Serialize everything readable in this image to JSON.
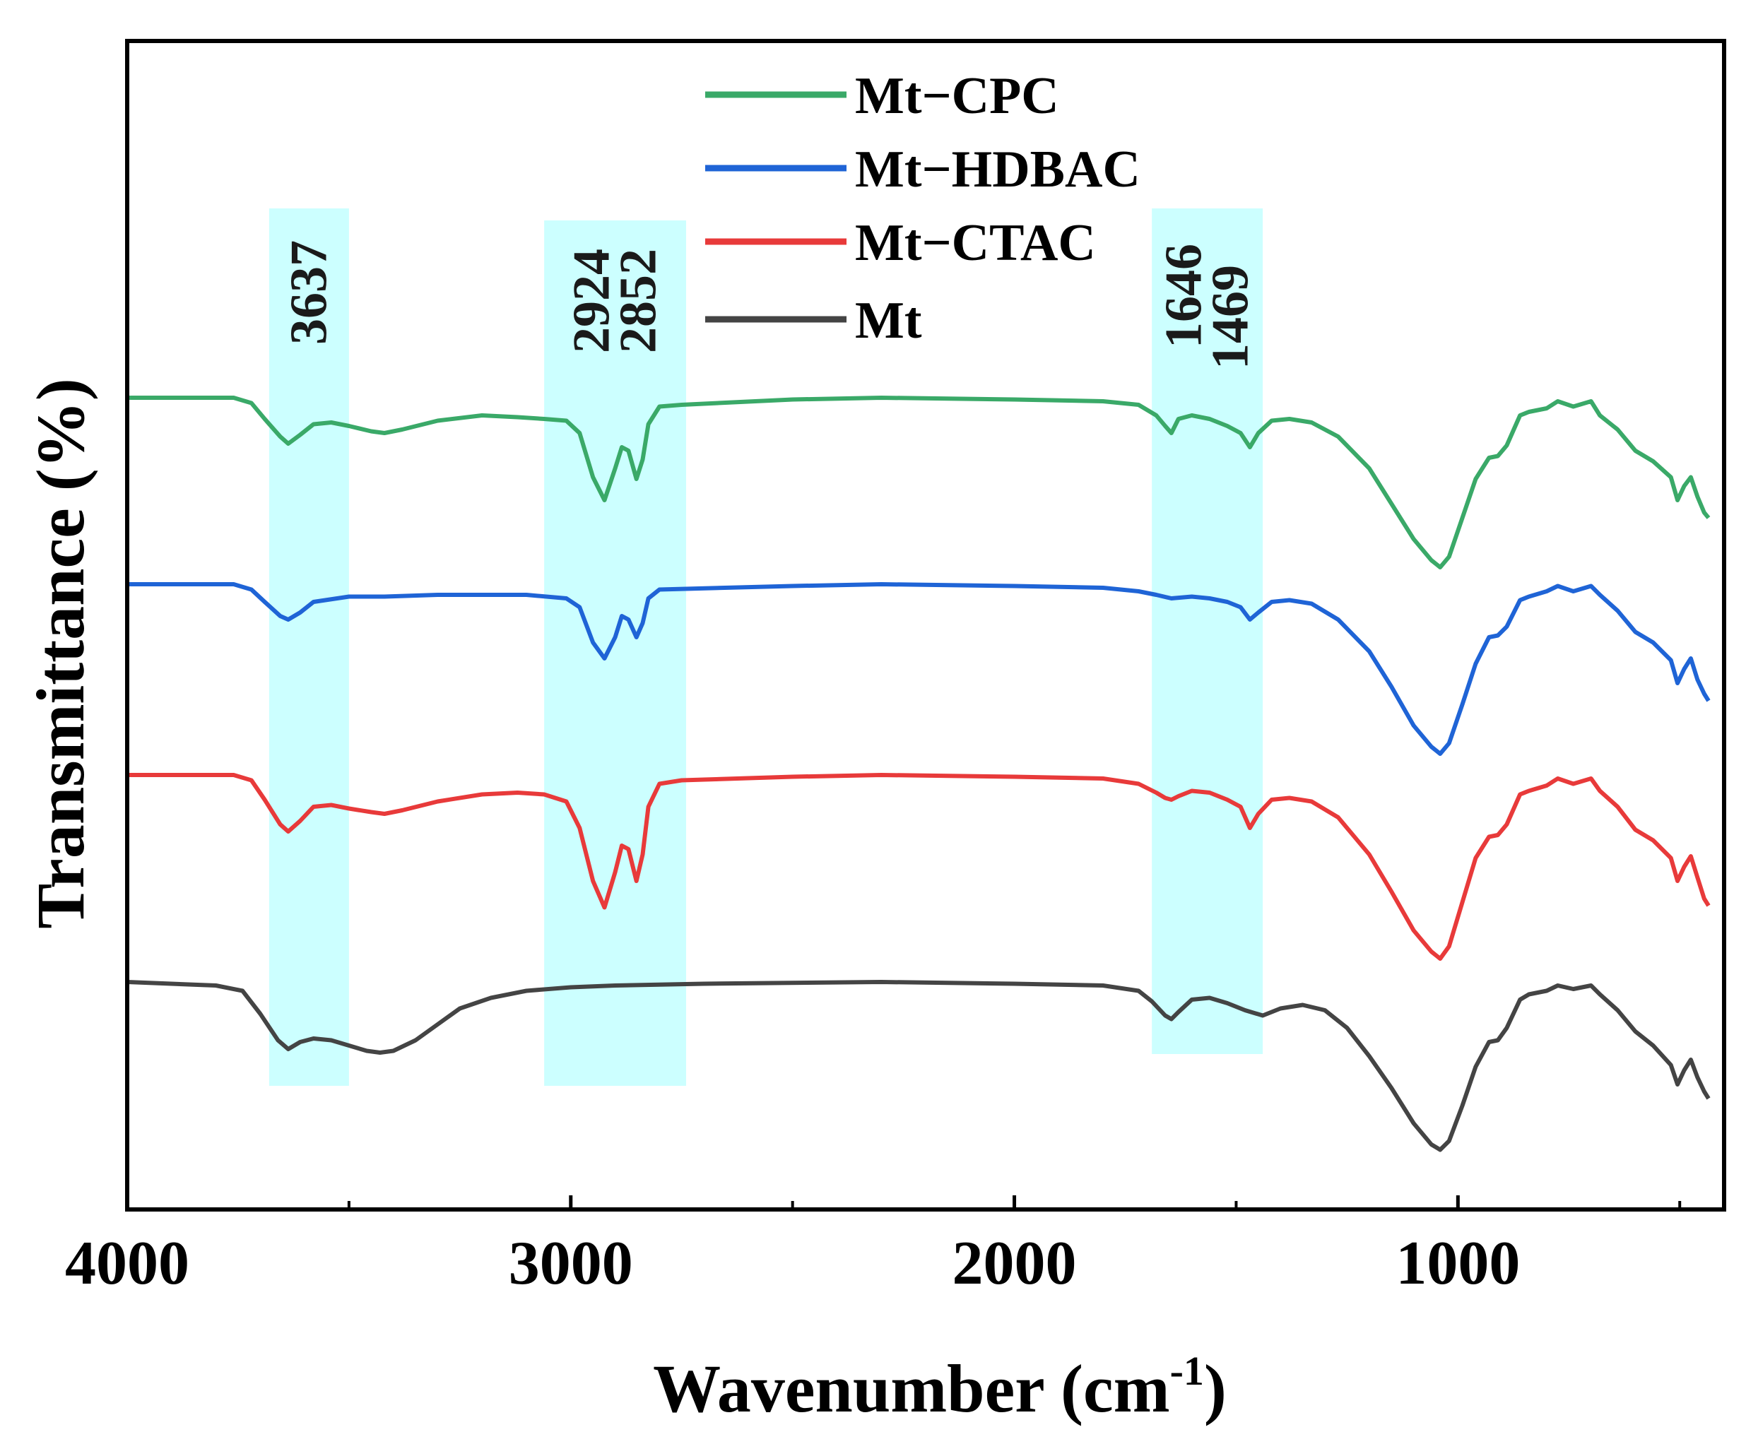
{
  "chart_data": {
    "type": "line",
    "xlabel": "Wavenumber (cm",
    "xlabel_sup": "-1",
    "xlabel_close": ")",
    "ylabel": "Transmittance (%)",
    "xlim": [
      4000,
      400
    ],
    "x_reversed": true,
    "y_ticks_shown": false,
    "x_ticks": [
      4000,
      3000,
      2000,
      1000
    ],
    "x_tick_labels": [
      "4000",
      "3000",
      "2000",
      "1000"
    ],
    "x_minor_ticks": [
      3500,
      2500,
      1500,
      500
    ],
    "legend": {
      "position": "top-center"
    },
    "highlight_bands": [
      {
        "from": 3680,
        "to": 3500,
        "labels": [
          "3637"
        ],
        "color": "#ccffff",
        "extent": "full"
      },
      {
        "from": 3060,
        "to": 2740,
        "labels": [
          "2924",
          "2852"
        ],
        "color": "#ccffff",
        "extent": "full"
      },
      {
        "from": 1690,
        "to": 1440,
        "labels": [
          "1646",
          "1469"
        ],
        "color": "#ccffff",
        "extent": "short"
      }
    ],
    "series": [
      {
        "name": "Mt−CPC",
        "color": "#3aa968",
        "offset": 3,
        "points": [
          [
            4000,
            0
          ],
          [
            3760,
            0
          ],
          [
            3720,
            -0.03
          ],
          [
            3690,
            -0.12
          ],
          [
            3655,
            -0.22
          ],
          [
            3637,
            -0.26
          ],
          [
            3610,
            -0.21
          ],
          [
            3580,
            -0.15
          ],
          [
            3540,
            -0.14
          ],
          [
            3500,
            -0.16
          ],
          [
            3450,
            -0.19
          ],
          [
            3420,
            -0.2
          ],
          [
            3380,
            -0.18
          ],
          [
            3300,
            -0.13
          ],
          [
            3200,
            -0.1
          ],
          [
            3120,
            -0.11
          ],
          [
            3060,
            -0.12
          ],
          [
            3010,
            -0.13
          ],
          [
            2980,
            -0.2
          ],
          [
            2950,
            -0.45
          ],
          [
            2924,
            -0.58
          ],
          [
            2900,
            -0.4
          ],
          [
            2885,
            -0.28
          ],
          [
            2870,
            -0.3
          ],
          [
            2852,
            -0.46
          ],
          [
            2838,
            -0.35
          ],
          [
            2825,
            -0.15
          ],
          [
            2800,
            -0.05
          ],
          [
            2750,
            -0.04
          ],
          [
            2500,
            -0.01
          ],
          [
            2300,
            0
          ],
          [
            2000,
            -0.01
          ],
          [
            1800,
            -0.02
          ],
          [
            1720,
            -0.04
          ],
          [
            1680,
            -0.1
          ],
          [
            1660,
            -0.16
          ],
          [
            1646,
            -0.2
          ],
          [
            1630,
            -0.12
          ],
          [
            1600,
            -0.1
          ],
          [
            1560,
            -0.12
          ],
          [
            1520,
            -0.16
          ],
          [
            1490,
            -0.2
          ],
          [
            1469,
            -0.28
          ],
          [
            1450,
            -0.2
          ],
          [
            1420,
            -0.13
          ],
          [
            1380,
            -0.12
          ],
          [
            1330,
            -0.14
          ],
          [
            1270,
            -0.22
          ],
          [
            1200,
            -0.4
          ],
          [
            1150,
            -0.6
          ],
          [
            1100,
            -0.8
          ],
          [
            1060,
            -0.92
          ],
          [
            1040,
            -0.96
          ],
          [
            1020,
            -0.9
          ],
          [
            990,
            -0.68
          ],
          [
            960,
            -0.46
          ],
          [
            930,
            -0.34
          ],
          [
            910,
            -0.33
          ],
          [
            890,
            -0.27
          ],
          [
            860,
            -0.1
          ],
          [
            840,
            -0.08
          ],
          [
            800,
            -0.06
          ],
          [
            775,
            -0.02
          ],
          [
            740,
            -0.05
          ],
          [
            700,
            -0.02
          ],
          [
            680,
            -0.1
          ],
          [
            640,
            -0.18
          ],
          [
            600,
            -0.3
          ],
          [
            560,
            -0.36
          ],
          [
            520,
            -0.45
          ],
          [
            505,
            -0.58
          ],
          [
            490,
            -0.5
          ],
          [
            475,
            -0.45
          ],
          [
            460,
            -0.56
          ],
          [
            445,
            -0.65
          ],
          [
            435,
            -0.68
          ]
        ]
      },
      {
        "name": "Mt−HDBAC",
        "color": "#1f64d6",
        "offset": 2,
        "points": [
          [
            4000,
            0
          ],
          [
            3760,
            0
          ],
          [
            3720,
            -0.03
          ],
          [
            3690,
            -0.1
          ],
          [
            3655,
            -0.18
          ],
          [
            3637,
            -0.2
          ],
          [
            3610,
            -0.16
          ],
          [
            3580,
            -0.1
          ],
          [
            3500,
            -0.07
          ],
          [
            3420,
            -0.07
          ],
          [
            3300,
            -0.06
          ],
          [
            3100,
            -0.06
          ],
          [
            3010,
            -0.08
          ],
          [
            2980,
            -0.13
          ],
          [
            2950,
            -0.33
          ],
          [
            2924,
            -0.42
          ],
          [
            2900,
            -0.3
          ],
          [
            2885,
            -0.18
          ],
          [
            2870,
            -0.2
          ],
          [
            2852,
            -0.3
          ],
          [
            2838,
            -0.22
          ],
          [
            2825,
            -0.08
          ],
          [
            2800,
            -0.03
          ],
          [
            2500,
            -0.01
          ],
          [
            2300,
            0
          ],
          [
            2000,
            -0.01
          ],
          [
            1800,
            -0.02
          ],
          [
            1720,
            -0.04
          ],
          [
            1680,
            -0.06
          ],
          [
            1646,
            -0.08
          ],
          [
            1600,
            -0.07
          ],
          [
            1560,
            -0.08
          ],
          [
            1520,
            -0.1
          ],
          [
            1490,
            -0.13
          ],
          [
            1469,
            -0.2
          ],
          [
            1450,
            -0.16
          ],
          [
            1420,
            -0.1
          ],
          [
            1380,
            -0.09
          ],
          [
            1330,
            -0.11
          ],
          [
            1270,
            -0.2
          ],
          [
            1200,
            -0.38
          ],
          [
            1150,
            -0.58
          ],
          [
            1100,
            -0.8
          ],
          [
            1060,
            -0.92
          ],
          [
            1040,
            -0.96
          ],
          [
            1020,
            -0.9
          ],
          [
            990,
            -0.68
          ],
          [
            960,
            -0.45
          ],
          [
            930,
            -0.3
          ],
          [
            910,
            -0.29
          ],
          [
            890,
            -0.24
          ],
          [
            860,
            -0.09
          ],
          [
            840,
            -0.07
          ],
          [
            800,
            -0.04
          ],
          [
            775,
            -0.01
          ],
          [
            740,
            -0.04
          ],
          [
            700,
            -0.01
          ],
          [
            680,
            -0.06
          ],
          [
            640,
            -0.15
          ],
          [
            600,
            -0.27
          ],
          [
            560,
            -0.33
          ],
          [
            520,
            -0.43
          ],
          [
            505,
            -0.56
          ],
          [
            490,
            -0.48
          ],
          [
            475,
            -0.42
          ],
          [
            460,
            -0.54
          ],
          [
            445,
            -0.62
          ],
          [
            435,
            -0.66
          ]
        ]
      },
      {
        "name": "Mt−CTAC",
        "color": "#e83a3a",
        "offset": 1,
        "points": [
          [
            4000,
            0
          ],
          [
            3760,
            0
          ],
          [
            3720,
            -0.03
          ],
          [
            3690,
            -0.14
          ],
          [
            3655,
            -0.28
          ],
          [
            3637,
            -0.32
          ],
          [
            3610,
            -0.26
          ],
          [
            3580,
            -0.18
          ],
          [
            3540,
            -0.17
          ],
          [
            3500,
            -0.19
          ],
          [
            3450,
            -0.21
          ],
          [
            3420,
            -0.22
          ],
          [
            3380,
            -0.2
          ],
          [
            3300,
            -0.15
          ],
          [
            3200,
            -0.11
          ],
          [
            3120,
            -0.1
          ],
          [
            3060,
            -0.11
          ],
          [
            3010,
            -0.15
          ],
          [
            2980,
            -0.3
          ],
          [
            2950,
            -0.6
          ],
          [
            2924,
            -0.75
          ],
          [
            2900,
            -0.55
          ],
          [
            2885,
            -0.4
          ],
          [
            2870,
            -0.42
          ],
          [
            2852,
            -0.6
          ],
          [
            2838,
            -0.45
          ],
          [
            2825,
            -0.18
          ],
          [
            2800,
            -0.05
          ],
          [
            2750,
            -0.03
          ],
          [
            2500,
            -0.01
          ],
          [
            2300,
            0
          ],
          [
            2000,
            -0.01
          ],
          [
            1800,
            -0.02
          ],
          [
            1720,
            -0.05
          ],
          [
            1680,
            -0.1
          ],
          [
            1660,
            -0.13
          ],
          [
            1646,
            -0.14
          ],
          [
            1630,
            -0.12
          ],
          [
            1600,
            -0.09
          ],
          [
            1560,
            -0.1
          ],
          [
            1520,
            -0.14
          ],
          [
            1490,
            -0.18
          ],
          [
            1469,
            -0.3
          ],
          [
            1450,
            -0.22
          ],
          [
            1420,
            -0.14
          ],
          [
            1380,
            -0.13
          ],
          [
            1330,
            -0.15
          ],
          [
            1270,
            -0.24
          ],
          [
            1200,
            -0.45
          ],
          [
            1150,
            -0.66
          ],
          [
            1100,
            -0.88
          ],
          [
            1060,
            -1.0
          ],
          [
            1040,
            -1.04
          ],
          [
            1020,
            -0.97
          ],
          [
            990,
            -0.72
          ],
          [
            960,
            -0.47
          ],
          [
            930,
            -0.35
          ],
          [
            910,
            -0.34
          ],
          [
            890,
            -0.28
          ],
          [
            860,
            -0.11
          ],
          [
            840,
            -0.09
          ],
          [
            800,
            -0.06
          ],
          [
            775,
            -0.02
          ],
          [
            740,
            -0.05
          ],
          [
            700,
            -0.02
          ],
          [
            680,
            -0.09
          ],
          [
            640,
            -0.18
          ],
          [
            600,
            -0.31
          ],
          [
            560,
            -0.37
          ],
          [
            520,
            -0.47
          ],
          [
            505,
            -0.6
          ],
          [
            490,
            -0.52
          ],
          [
            475,
            -0.46
          ],
          [
            460,
            -0.58
          ],
          [
            445,
            -0.7
          ],
          [
            435,
            -0.74
          ]
        ]
      },
      {
        "name": "Mt",
        "color": "#444444",
        "offset": 0,
        "points": [
          [
            4000,
            0
          ],
          [
            3800,
            -0.02
          ],
          [
            3740,
            -0.05
          ],
          [
            3700,
            -0.18
          ],
          [
            3660,
            -0.33
          ],
          [
            3637,
            -0.38
          ],
          [
            3610,
            -0.34
          ],
          [
            3580,
            -0.32
          ],
          [
            3540,
            -0.33
          ],
          [
            3500,
            -0.36
          ],
          [
            3460,
            -0.39
          ],
          [
            3430,
            -0.4
          ],
          [
            3400,
            -0.39
          ],
          [
            3350,
            -0.33
          ],
          [
            3300,
            -0.24
          ],
          [
            3250,
            -0.15
          ],
          [
            3180,
            -0.09
          ],
          [
            3100,
            -0.05
          ],
          [
            3000,
            -0.03
          ],
          [
            2900,
            -0.02
          ],
          [
            2700,
            -0.01
          ],
          [
            2300,
            0
          ],
          [
            2000,
            -0.01
          ],
          [
            1800,
            -0.02
          ],
          [
            1720,
            -0.05
          ],
          [
            1690,
            -0.11
          ],
          [
            1660,
            -0.19
          ],
          [
            1646,
            -0.21
          ],
          [
            1630,
            -0.17
          ],
          [
            1600,
            -0.1
          ],
          [
            1560,
            -0.09
          ],
          [
            1520,
            -0.12
          ],
          [
            1480,
            -0.16
          ],
          [
            1440,
            -0.19
          ],
          [
            1400,
            -0.15
          ],
          [
            1350,
            -0.13
          ],
          [
            1300,
            -0.16
          ],
          [
            1250,
            -0.26
          ],
          [
            1200,
            -0.42
          ],
          [
            1150,
            -0.6
          ],
          [
            1100,
            -0.8
          ],
          [
            1060,
            -0.92
          ],
          [
            1040,
            -0.95
          ],
          [
            1020,
            -0.9
          ],
          [
            990,
            -0.7
          ],
          [
            960,
            -0.48
          ],
          [
            930,
            -0.34
          ],
          [
            910,
            -0.33
          ],
          [
            890,
            -0.26
          ],
          [
            860,
            -0.1
          ],
          [
            840,
            -0.07
          ],
          [
            800,
            -0.05
          ],
          [
            775,
            -0.02
          ],
          [
            740,
            -0.04
          ],
          [
            700,
            -0.02
          ],
          [
            680,
            -0.07
          ],
          [
            640,
            -0.16
          ],
          [
            600,
            -0.28
          ],
          [
            560,
            -0.36
          ],
          [
            520,
            -0.47
          ],
          [
            505,
            -0.58
          ],
          [
            490,
            -0.5
          ],
          [
            475,
            -0.44
          ],
          [
            460,
            -0.54
          ],
          [
            445,
            -0.62
          ],
          [
            435,
            -0.66
          ]
        ]
      }
    ]
  }
}
